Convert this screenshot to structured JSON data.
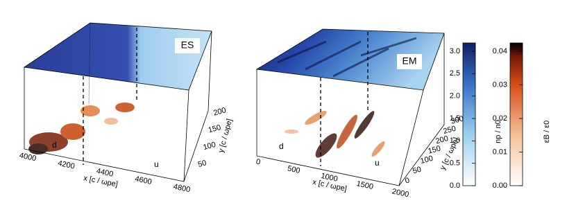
{
  "panels": [
    {
      "label": "ES",
      "x_axis": {
        "label": "x [c / ωpe]",
        "ticks": [
          "4000",
          "4200",
          "4400",
          "4600",
          "4800"
        ]
      },
      "y_axis": {
        "label": "y [c / ωpe]",
        "ticks": [
          "50",
          "100",
          "150",
          "200"
        ]
      },
      "regions": [
        "d",
        "u"
      ]
    },
    {
      "label": "EM",
      "x_axis": {
        "label": "x [c / ωpe]",
        "ticks": [
          "0",
          "500",
          "1000",
          "1500",
          "2000"
        ]
      },
      "y_axis": {
        "label": "y [c / ωpe]",
        "ticks": [
          "0",
          "50",
          "100",
          "150",
          "200",
          "250",
          "300"
        ]
      },
      "regions": [
        "d",
        "u"
      ]
    }
  ],
  "colorbars": [
    {
      "label": "np / n0",
      "ticks": [
        "0.0",
        "0.5",
        "1.0",
        "1.5",
        "2.0",
        "2.5",
        "3.0"
      ]
    },
    {
      "label": "εB / ε0",
      "ticks": [
        "0.00",
        "0.01",
        "0.02",
        "0.03",
        "0.04"
      ]
    }
  ]
}
